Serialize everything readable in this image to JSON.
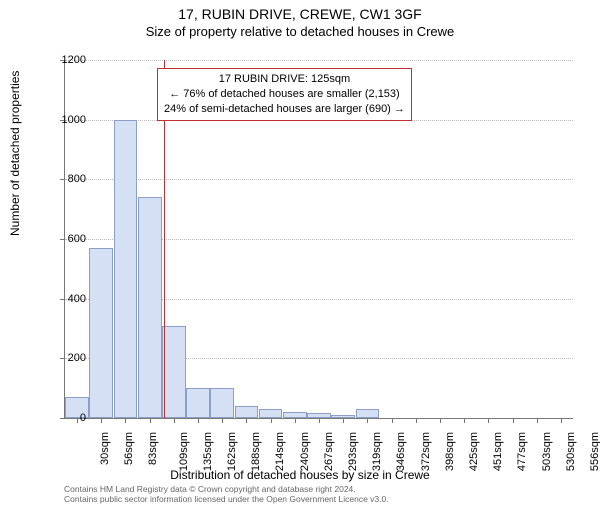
{
  "title_main": "17, RUBIN DRIVE, CREWE, CW1 3GF",
  "title_sub": "Size of property relative to detached houses in Crewe",
  "ylabel": "Number of detached properties",
  "xlabel": "Distribution of detached houses by size in Crewe",
  "chart": {
    "type": "histogram",
    "ylim": [
      0,
      1200
    ],
    "ytick_step": 200,
    "background_color": "#ffffff",
    "bar_fill": "#d6e0f5",
    "bar_border": "#8aa0c8",
    "grid_color": "#bbbbbb",
    "axis_color": "#777777",
    "reference_line_color": "#c03030",
    "reference_value": 125,
    "x_categories": [
      "30sqm",
      "56sqm",
      "83sqm",
      "109sqm",
      "135sqm",
      "162sqm",
      "188sqm",
      "214sqm",
      "240sqm",
      "267sqm",
      "293sqm",
      "319sqm",
      "346sqm",
      "372sqm",
      "398sqm",
      "425sqm",
      "451sqm",
      "477sqm",
      "503sqm",
      "530sqm",
      "556sqm"
    ],
    "values": [
      70,
      570,
      1000,
      740,
      310,
      100,
      100,
      40,
      30,
      20,
      18,
      10,
      30,
      0,
      0,
      0,
      0,
      0,
      0,
      0,
      0
    ]
  },
  "annotation": {
    "line1": "17 RUBIN DRIVE: 125sqm",
    "line2": "← 76% of detached houses are smaller (2,153)",
    "line3": "24% of semi-detached houses are larger (690) →"
  },
  "footer": {
    "line1": "Contains HM Land Registry data © Crown copyright and database right 2024.",
    "line2": "Contains public sector information licensed under the Open Government Licence v3.0."
  }
}
